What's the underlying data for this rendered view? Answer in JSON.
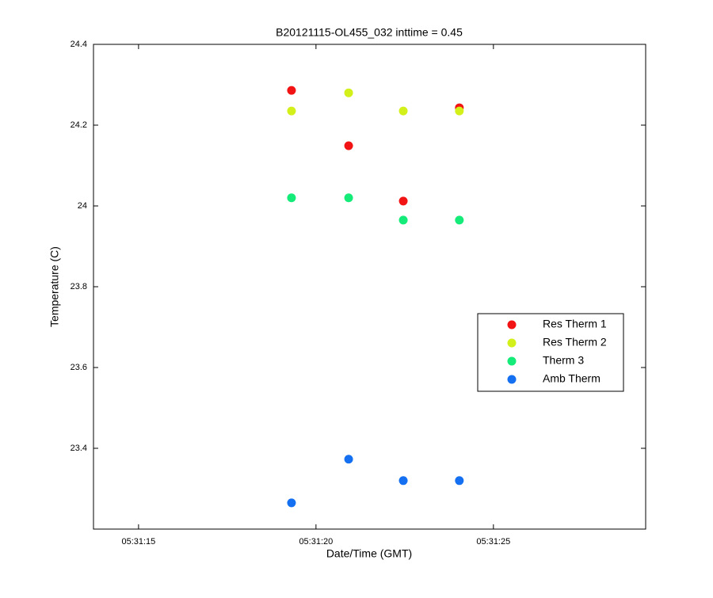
{
  "chart_data": {
    "type": "scatter",
    "title": "B20121115-OL455_032 inttime = 0.45",
    "x_label": "Date/Time (GMT)",
    "y_label": "Temperature (C)",
    "x": [
      19.31,
      20.92,
      22.46,
      24.04
    ],
    "series": [
      {
        "name": "Res Therm 1",
        "color": "#f21414",
        "values": [
          24.286,
          24.149,
          24.012,
          24.243
        ]
      },
      {
        "name": "Res Therm 2",
        "color": "#d4f01a",
        "values": [
          24.235,
          24.28,
          24.235,
          24.235
        ]
      },
      {
        "name": "Therm 3",
        "color": "#14eb78",
        "values": [
          24.02,
          24.02,
          23.965,
          23.965
        ]
      },
      {
        "name": "Amb Therm",
        "color": "#1470f0",
        "values": [
          23.265,
          23.373,
          23.32,
          23.32
        ]
      }
    ],
    "xlim": [
      13.73,
      29.29
    ],
    "xticks": [
      {
        "value": 15,
        "label": "05:31:15"
      },
      {
        "value": 20,
        "label": "05:31:20"
      },
      {
        "value": 25,
        "label": "05:31:25"
      }
    ],
    "ylim": [
      23.2,
      24.4
    ],
    "yticks": [
      23.4,
      23.6,
      23.8,
      24,
      24.2,
      24.4
    ],
    "grid": false,
    "legend": "east"
  }
}
